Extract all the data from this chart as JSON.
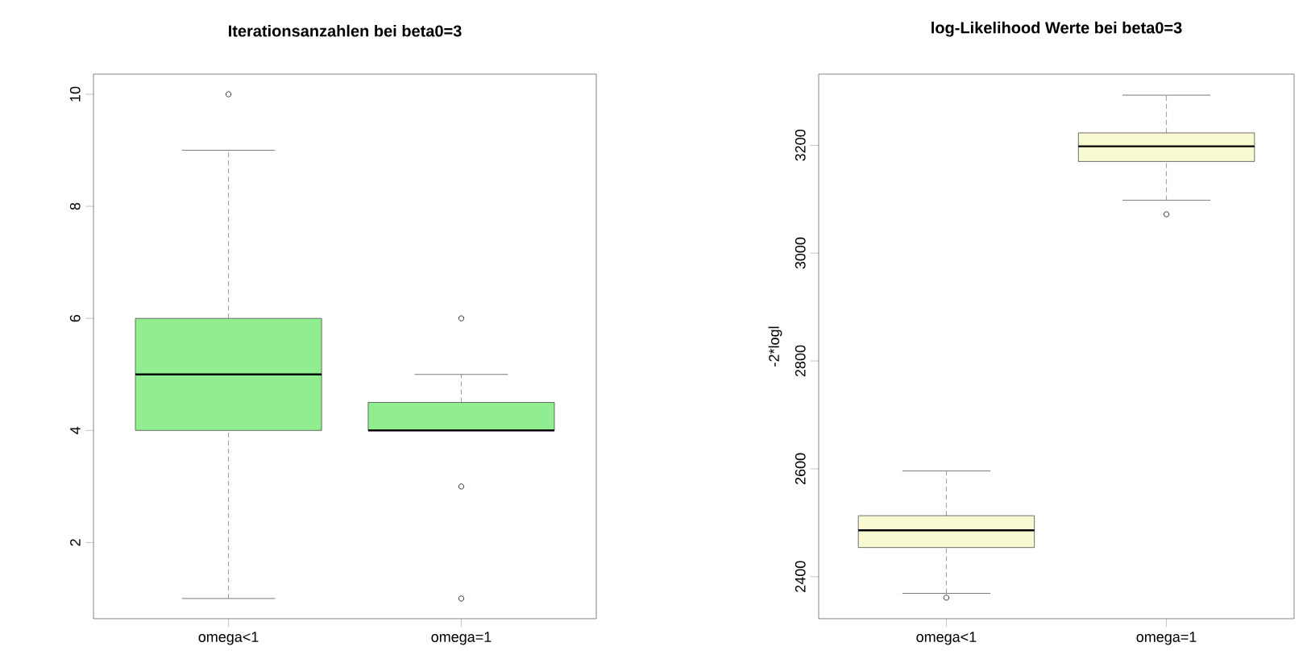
{
  "chart_data": [
    {
      "type": "box",
      "title": "Iterationsanzahlen bei beta0=3",
      "categories": [
        "omega<1",
        "omega=1"
      ],
      "series": [
        {
          "color": "#90ee90",
          "boxes": [
            {
              "low": 1,
              "q1": 4,
              "median": 5,
              "q3": 6,
              "high": 9,
              "outliers": [
                10
              ]
            },
            {
              "low": 4,
              "q1": 4,
              "median": 4,
              "q3": 4.5,
              "high": 5,
              "outliers": [
                6,
                3,
                1
              ]
            }
          ]
        }
      ],
      "ylim": [
        0.64,
        10.36
      ],
      "yticks": [
        2,
        4,
        6,
        8,
        10
      ]
    },
    {
      "type": "box",
      "title": "log-Likelihood Werte bei beta0=3",
      "ylabel": "-2*logl",
      "categories": [
        "omega<1",
        "omega=1"
      ],
      "series": [
        {
          "color": "#fafad2",
          "boxes": [
            {
              "low": 2369,
              "q1": 2454,
              "median": 2486,
              "q3": 2513,
              "high": 2596,
              "outliers": [
                2361
              ]
            },
            {
              "low": 3098,
              "q1": 3170,
              "median": 3198,
              "q3": 3223,
              "high": 3293,
              "outliers": [
                3072
              ]
            }
          ]
        }
      ],
      "ylim": [
        2322,
        3332
      ],
      "yticks": [
        2400,
        2600,
        2800,
        3000,
        3200
      ]
    }
  ]
}
